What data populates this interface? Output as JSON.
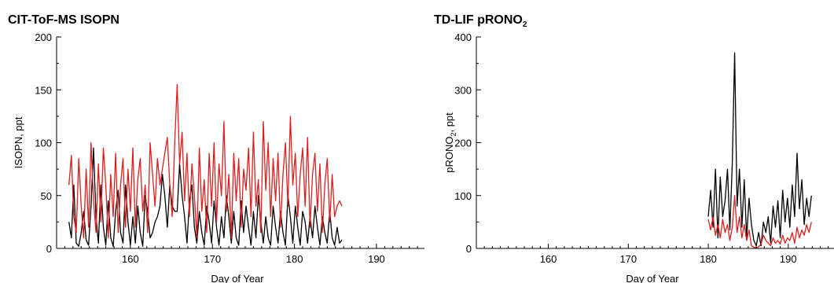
{
  "chart_data": [
    {
      "type": "line",
      "title": "CIT-ToF-MS ISOPN",
      "xlabel": "Day of Year",
      "ylabel": "ISOPN, ppt",
      "xlim": [
        151,
        197
      ],
      "ylim": [
        0,
        200
      ],
      "xticks": [
        160,
        170,
        180,
        190
      ],
      "yticks": [
        0,
        50,
        100,
        150,
        200
      ],
      "grid": false,
      "series": [
        {
          "color": "#000000",
          "x": [
            152.5,
            152.8,
            153.1,
            153.4,
            153.7,
            154.0,
            154.3,
            154.6,
            154.9,
            155.2,
            155.5,
            155.8,
            156.1,
            156.4,
            156.7,
            157.0,
            157.3,
            157.6,
            157.9,
            158.2,
            158.5,
            158.8,
            159.1,
            159.4,
            159.7,
            160.0,
            160.3,
            160.6,
            160.9,
            161.2,
            161.5,
            161.8,
            162.1,
            162.4,
            162.7,
            163.0,
            163.3,
            163.6,
            163.9,
            164.2,
            164.5,
            164.8,
            165.1,
            165.4,
            165.7,
            166.0,
            166.3,
            166.6,
            166.9,
            167.2,
            167.5,
            167.8,
            168.1,
            168.4,
            168.7,
            169.0,
            169.3,
            169.6,
            169.9,
            170.2,
            170.5,
            170.8,
            171.1,
            171.4,
            171.7,
            172.0,
            172.3,
            172.6,
            172.9,
            173.2,
            173.5,
            173.8,
            174.1,
            174.4,
            174.7,
            175.0,
            175.3,
            175.6,
            175.9,
            176.2,
            176.5,
            176.8,
            177.1,
            177.4,
            177.7,
            178.0,
            178.3,
            178.6,
            178.9,
            179.2,
            179.5,
            179.8,
            180.1,
            180.4,
            180.7,
            181.0,
            181.3,
            181.6,
            181.9,
            182.2,
            182.5,
            182.8,
            183.1,
            183.4,
            183.7,
            184.0,
            184.3,
            184.6,
            184.9,
            185.2,
            185.5,
            185.8
          ],
          "y": [
            25,
            10,
            60,
            5,
            2,
            15,
            35,
            8,
            3,
            40,
            95,
            30,
            5,
            60,
            20,
            3,
            45,
            10,
            2,
            35,
            55,
            15,
            5,
            60,
            25,
            3,
            30,
            5,
            40,
            15,
            2,
            50,
            35,
            10,
            15,
            25,
            30,
            40,
            70,
            50,
            20,
            60,
            40,
            35,
            35,
            80,
            50,
            30,
            5,
            45,
            60,
            20,
            5,
            35,
            15,
            3,
            40,
            25,
            5,
            45,
            20,
            3,
            30,
            10,
            50,
            30,
            5,
            35,
            10,
            3,
            45,
            15,
            40,
            20,
            3,
            35,
            10,
            50,
            25,
            5,
            30,
            10,
            3,
            40,
            20,
            5,
            35,
            15,
            3,
            50,
            30,
            5,
            40,
            20,
            3,
            35,
            25,
            5,
            30,
            10,
            40,
            20,
            3,
            30,
            15,
            5,
            35,
            10,
            3,
            20,
            5,
            8
          ]
        },
        {
          "color": "#dc1e1e",
          "x": [
            152.5,
            152.8,
            153.1,
            153.4,
            153.7,
            154.0,
            154.3,
            154.6,
            154.9,
            155.2,
            155.5,
            155.8,
            156.1,
            156.4,
            156.7,
            157.0,
            157.3,
            157.6,
            157.9,
            158.2,
            158.5,
            158.8,
            159.1,
            159.4,
            159.7,
            160.0,
            160.3,
            160.6,
            160.9,
            161.2,
            161.5,
            161.8,
            162.1,
            162.4,
            162.7,
            163.0,
            163.3,
            163.6,
            163.9,
            164.2,
            164.5,
            164.8,
            165.1,
            165.4,
            165.7,
            166.0,
            166.3,
            166.6,
            166.9,
            167.2,
            167.5,
            167.8,
            168.1,
            168.4,
            168.7,
            169.0,
            169.3,
            169.6,
            169.9,
            170.2,
            170.5,
            170.8,
            171.1,
            171.4,
            171.7,
            172.0,
            172.3,
            172.6,
            172.9,
            173.2,
            173.5,
            173.8,
            174.1,
            174.4,
            174.7,
            175.0,
            175.3,
            175.6,
            175.9,
            176.2,
            176.5,
            176.8,
            177.1,
            177.4,
            177.7,
            178.0,
            178.3,
            178.6,
            178.9,
            179.2,
            179.5,
            179.8,
            180.1,
            180.4,
            180.7,
            181.0,
            181.3,
            181.6,
            181.9,
            182.2,
            182.5,
            182.8,
            183.1,
            183.4,
            183.7,
            184.0,
            184.3,
            184.6,
            184.9,
            185.2,
            185.5,
            185.8
          ],
          "y": [
            60,
            88,
            30,
            15,
            85,
            40,
            10,
            75,
            20,
            100,
            45,
            15,
            80,
            25,
            95,
            60,
            10,
            70,
            30,
            90,
            15,
            60,
            85,
            20,
            75,
            35,
            95,
            20,
            65,
            85,
            35,
            60,
            15,
            100,
            70,
            40,
            85,
            60,
            75,
            90,
            105,
            60,
            30,
            100,
            155,
            80,
            110,
            45,
            90,
            30,
            80,
            50,
            10,
            95,
            35,
            65,
            15,
            90,
            40,
            100,
            25,
            80,
            50,
            120,
            35,
            70,
            10,
            90,
            45,
            85,
            20,
            75,
            55,
            95,
            30,
            110,
            40,
            65,
            15,
            120,
            55,
            100,
            30,
            85,
            45,
            90,
            20,
            70,
            100,
            40,
            125,
            60,
            90,
            30,
            70,
            95,
            40,
            105,
            20,
            70,
            90,
            35,
            80,
            15,
            60,
            85,
            25,
            70,
            30,
            40,
            45,
            40
          ]
        }
      ]
    },
    {
      "type": "line",
      "title": "TD-LIF pRONO",
      "title_subscript": "2",
      "xlabel": "Day of Year",
      "ylabel": "pRONO",
      "ylabel_subscript": "2",
      "ylabel_suffix": ", ppt",
      "xlim": [
        151,
        197
      ],
      "ylim": [
        0,
        400
      ],
      "xticks": [
        160,
        170,
        180,
        190
      ],
      "yticks": [
        0,
        100,
        200,
        300,
        400
      ],
      "grid": false,
      "series": [
        {
          "color": "#000000",
          "x": [
            180.0,
            180.3,
            180.6,
            180.9,
            181.2,
            181.5,
            181.8,
            182.1,
            182.4,
            182.7,
            183.0,
            183.3,
            183.6,
            183.9,
            184.2,
            184.5,
            184.8,
            185.1,
            185.4,
            185.7,
            186.0,
            186.3,
            186.6,
            186.9,
            187.2,
            187.5,
            187.8,
            188.1,
            188.4,
            188.7,
            189.0,
            189.3,
            189.6,
            189.9,
            190.2,
            190.5,
            190.8,
            191.1,
            191.4,
            191.7,
            192.0,
            192.3,
            192.6,
            192.9
          ],
          "y": [
            60,
            110,
            40,
            150,
            20,
            135,
            60,
            90,
            150,
            35,
            160,
            370,
            80,
            150,
            40,
            130,
            20,
            95,
            45,
            15,
            5,
            30,
            5,
            50,
            30,
            60,
            10,
            80,
            40,
            90,
            20,
            110,
            50,
            95,
            40,
            120,
            60,
            180,
            75,
            130,
            45,
            95,
            60,
            100
          ]
        },
        {
          "color": "#dc1e1e",
          "x": [
            180.0,
            180.3,
            180.6,
            180.9,
            181.2,
            181.5,
            181.8,
            182.1,
            182.4,
            182.7,
            183.0,
            183.3,
            183.6,
            183.9,
            184.2,
            184.5,
            184.8,
            185.1,
            185.4,
            185.7,
            186.0,
            186.3,
            186.6,
            186.9,
            187.2,
            187.5,
            187.8,
            188.1,
            188.4,
            188.7,
            189.0,
            189.3,
            189.6,
            189.9,
            190.2,
            190.5,
            190.8,
            191.1,
            191.4,
            191.7,
            192.0,
            192.3,
            192.6,
            192.9
          ],
          "y": [
            55,
            35,
            60,
            25,
            45,
            20,
            55,
            30,
            45,
            15,
            40,
            100,
            30,
            60,
            20,
            45,
            15,
            35,
            5,
            2,
            1,
            3,
            8,
            25,
            15,
            10,
            5,
            20,
            10,
            15,
            8,
            25,
            10,
            20,
            15,
            30,
            10,
            40,
            20,
            35,
            25,
            45,
            30,
            50
          ]
        }
      ]
    }
  ]
}
